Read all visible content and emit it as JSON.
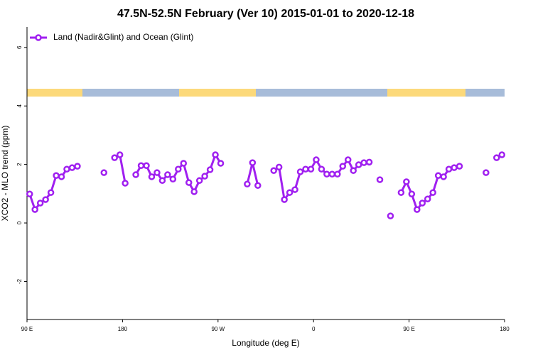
{
  "chart_data": {
    "type": "line",
    "title": "47.5N-52.5N February (Ver 10)   2015-01-01 to 2020-12-18",
    "xlabel": "Longitude (deg E)",
    "ylabel": "XCO2 - MLO trend (ppm)",
    "xlim": [
      90,
      540
    ],
    "ylim": [
      -3.3,
      6.7
    ],
    "xticks": [
      {
        "value": 90,
        "label": "90 E"
      },
      {
        "value": 180,
        "label": "180"
      },
      {
        "value": 270,
        "label": "90 W"
      },
      {
        "value": 360,
        "label": "0"
      },
      {
        "value": 450,
        "label": "90 E"
      },
      {
        "value": 540,
        "label": "180"
      }
    ],
    "yticks": [
      -2,
      0,
      2,
      4,
      6
    ],
    "legend": "top-left",
    "x": [
      92.5,
      97.5,
      102.5,
      107.5,
      112.5,
      117.5,
      122.5,
      127.5,
      132.5,
      137.5,
      142.5,
      162.5,
      167.5,
      172.5,
      177.5,
      182.5,
      187.5,
      192.5,
      197.5,
      202.5,
      207.5,
      212.5,
      217.5,
      222.5,
      227.5,
      232.5,
      237.5,
      242.5,
      247.5,
      252.5,
      257.5,
      262.5,
      267.5,
      272.5,
      277.5,
      297.5,
      302.5,
      307.5,
      312.5,
      322.5,
      327.5,
      332.5,
      337.5,
      342.5,
      347.5,
      352.5,
      357.5,
      362.5,
      367.5,
      372.5,
      377.5,
      382.5,
      387.5,
      392.5,
      397.5,
      402.5,
      407.5,
      412.5,
      417.5,
      422.5,
      427.5,
      432.5,
      437.5,
      442.5,
      447.5,
      452.5,
      457.5,
      462.5,
      467.5,
      472.5,
      477.5,
      482.5,
      487.5,
      492.5,
      497.5,
      502.5,
      522.5,
      527.5,
      532.5,
      537.5
    ],
    "series": [
      {
        "name": "Land (Nadir&Glint) and Ocean (Glint)",
        "color": "#a020f0",
        "values": [
          0.99,
          0.46,
          0.68,
          0.8,
          1.04,
          1.62,
          1.58,
          1.84,
          1.89,
          1.94,
          null,
          1.72,
          null,
          2.23,
          2.33,
          1.36,
          null,
          1.65,
          1.96,
          1.96,
          1.58,
          1.72,
          1.45,
          1.65,
          1.5,
          1.84,
          2.04,
          1.38,
          1.07,
          1.45,
          1.6,
          1.82,
          2.33,
          2.04,
          null,
          1.33,
          2.06,
          1.28,
          null,
          1.79,
          1.91,
          0.8,
          1.04,
          1.14,
          1.75,
          1.84,
          1.84,
          2.16,
          1.84,
          1.67,
          1.67,
          1.67,
          1.94,
          2.16,
          1.79,
          1.99,
          2.06,
          2.08,
          null,
          1.48,
          null,
          0.24,
          null,
          1.04,
          1.41,
          0.99,
          0.46,
          0.68,
          0.82,
          1.04,
          1.62,
          1.58,
          1.84,
          1.89,
          1.94,
          null,
          1.72,
          null,
          2.23,
          2.33
        ]
      }
    ]
  }
}
